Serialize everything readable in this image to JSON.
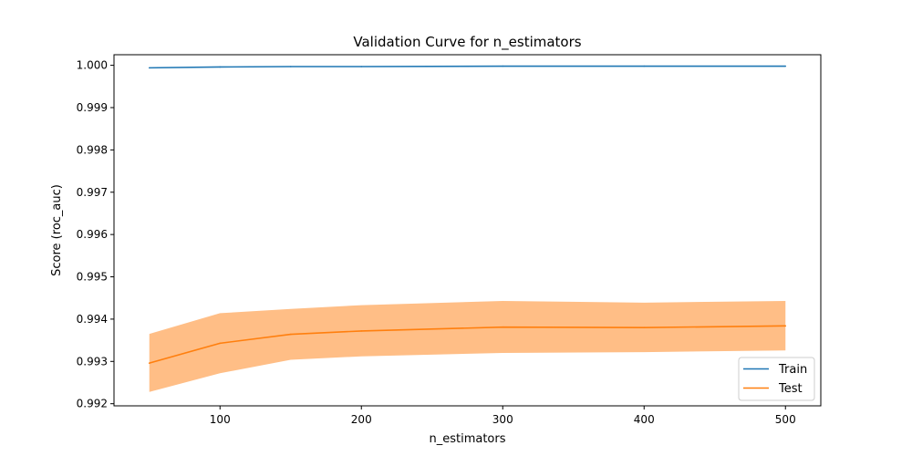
{
  "chart_data": {
    "type": "line",
    "title": "Validation Curve for n_estimators",
    "xlabel": "n_estimators",
    "ylabel": "Score (roc_auc)",
    "xlim": [
      25,
      525
    ],
    "ylim": [
      0.99195,
      1.00025
    ],
    "x_ticks": [
      100,
      200,
      300,
      400,
      500
    ],
    "x_tick_labels": [
      "100",
      "200",
      "300",
      "400",
      "500"
    ],
    "y_ticks": [
      0.992,
      0.993,
      0.994,
      0.995,
      0.996,
      0.997,
      0.998,
      0.999,
      1.0
    ],
    "y_tick_labels": [
      "0.992",
      "0.993",
      "0.994",
      "0.995",
      "0.996",
      "0.997",
      "0.998",
      "0.999",
      "1.000"
    ],
    "grid": false,
    "legend_position": "lower-right",
    "x": [
      50,
      100,
      150,
      200,
      300,
      400,
      500
    ],
    "series": [
      {
        "name": "Train",
        "color": "#1f77b4",
        "values": [
          0.99994,
          0.99996,
          0.99997,
          0.99997,
          0.99998,
          0.99998,
          0.99998
        ]
      },
      {
        "name": "Test",
        "color": "#ff7f0e",
        "band_color": "#ffbe86",
        "values": [
          0.99296,
          0.99343,
          0.99364,
          0.99372,
          0.99381,
          0.9938,
          0.99384
        ],
        "band_upper": [
          0.99365,
          0.99414,
          0.99424,
          0.99433,
          0.99443,
          0.99439,
          0.99443
        ],
        "band_lower": [
          0.99228,
          0.99272,
          0.99304,
          0.99312,
          0.9932,
          0.99322,
          0.99326
        ]
      }
    ]
  }
}
